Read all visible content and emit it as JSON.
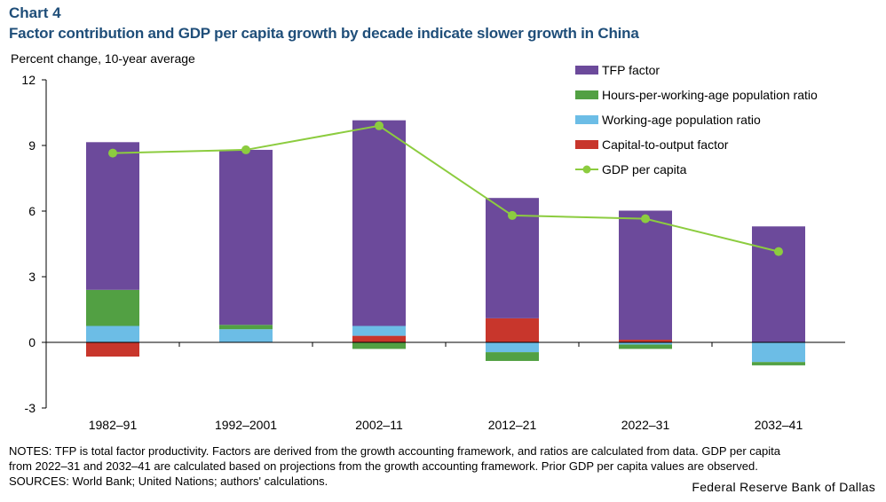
{
  "header": {
    "chart_number": "Chart 4",
    "title": "Factor contribution and GDP per capita growth by decade indicate slower growth in China"
  },
  "footer": {
    "notes_lines": [
      "NOTES: TFP is total factor productivity. Factors are derived from the growth accounting framework, and ratios are calculated from data. GDP per capita",
      "from 2022–31 and 2032–41 are calculated based on projections from the growth accounting framework. Prior GDP per capita values are observed.",
      "SOURCES: World Bank; United Nations; authors' calculations."
    ],
    "source_credit": "Federal Reserve Bank of Dallas"
  },
  "chart_data": {
    "type": "bar",
    "stacked": true,
    "title": "",
    "ylabel": "Percent change, 10-year average",
    "xlabel": "",
    "ylim": [
      -3,
      12
    ],
    "yticks": [
      -3,
      0,
      3,
      6,
      9,
      12
    ],
    "grid": false,
    "legend_position": "top-right",
    "categories": [
      "1982–91",
      "1992–2001",
      "2002–11",
      "2012–21",
      "2022–31",
      "2032–41"
    ],
    "series": [
      {
        "name": "Capital-to-output factor",
        "color": "#c8362c",
        "values": [
          -0.65,
          0.0,
          0.3,
          1.1,
          0.12,
          0.0
        ]
      },
      {
        "name": "Working-age population ratio",
        "color": "#6cbde6",
        "values": [
          0.75,
          0.6,
          0.45,
          -0.45,
          -0.1,
          -0.9
        ]
      },
      {
        "name": "Hours-per-working-age population ratio",
        "color": "#52a043",
        "values": [
          1.65,
          0.2,
          -0.3,
          -0.4,
          -0.2,
          -0.15
        ]
      },
      {
        "name": "TFP factor",
        "color": "#6c4a9b",
        "values": [
          6.75,
          8.0,
          9.4,
          5.5,
          5.9,
          5.3
        ]
      }
    ],
    "line": {
      "name": "GDP per capita",
      "color": "#8ccc3f",
      "values": [
        8.65,
        8.8,
        9.9,
        5.8,
        5.65,
        4.15
      ]
    },
    "legend_order": [
      "TFP factor",
      "Hours-per-working-age population ratio",
      "Working-age population ratio",
      "Capital-to-output factor",
      "GDP per capita"
    ]
  }
}
